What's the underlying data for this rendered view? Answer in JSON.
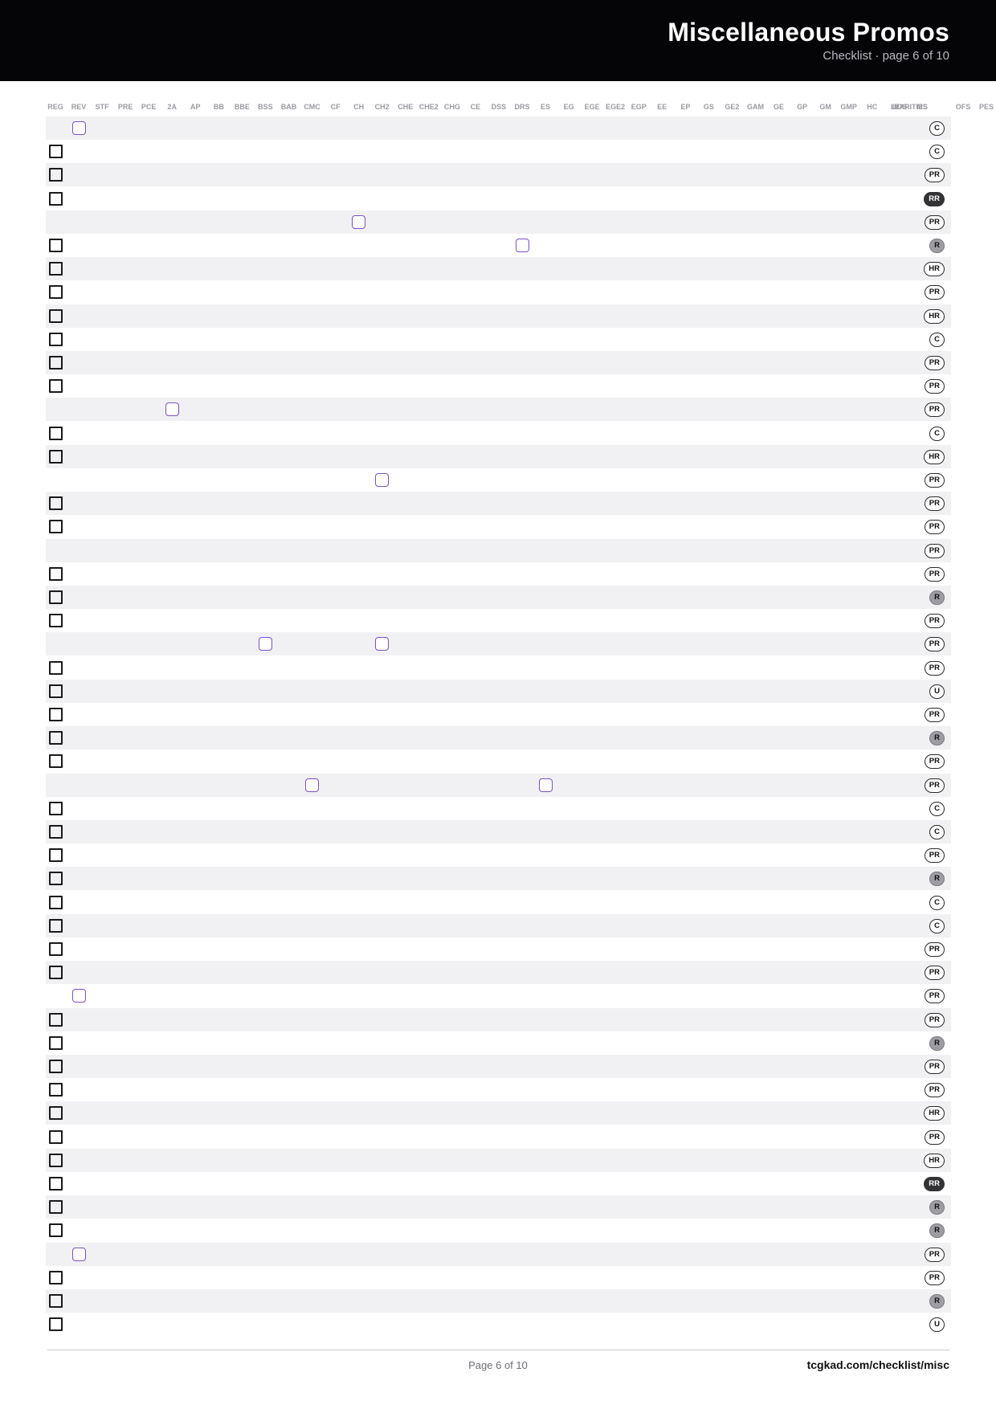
{
  "header": {
    "title": "Miscellaneous Promos",
    "subtitle": "Checklist · page 6 of 10"
  },
  "columns": [
    "REG",
    "REV",
    "STF",
    "PRE",
    "PCE",
    "2A",
    "AP",
    "BB",
    "BBE",
    "BSS",
    "BAB",
    "CMC",
    "CF",
    "CH",
    "CH2",
    "CHE",
    "CHE2",
    "CHG",
    "CE",
    "DSS",
    "DRS",
    "ES",
    "EG",
    "EGE",
    "EGE2",
    "EGP",
    "EE",
    "EP",
    "GS",
    "GE2",
    "GAM",
    "GE",
    "GP",
    "GM",
    "GMP",
    "HC",
    "LE",
    "LOS",
    "RARITIES",
    "MS",
    "OFS",
    "PES"
  ],
  "rows": [
    {
      "reg": false,
      "variants": [
        "REV"
      ],
      "rarity": "C",
      "tone": "normal"
    },
    {
      "reg": true,
      "variants": [],
      "rarity": "C",
      "tone": "normal"
    },
    {
      "reg": true,
      "variants": [],
      "rarity": "PR",
      "tone": "normal"
    },
    {
      "reg": true,
      "variants": [],
      "rarity": "RR",
      "tone": "dark"
    },
    {
      "reg": false,
      "variants": [
        "CH"
      ],
      "rarity": "PR",
      "tone": "normal"
    },
    {
      "reg": true,
      "variants": [
        "DRS"
      ],
      "rarity": "R",
      "tone": "light"
    },
    {
      "reg": true,
      "variants": [],
      "rarity": "HR",
      "tone": "normal"
    },
    {
      "reg": true,
      "variants": [],
      "rarity": "PR",
      "tone": "normal"
    },
    {
      "reg": true,
      "variants": [],
      "rarity": "HR",
      "tone": "normal"
    },
    {
      "reg": true,
      "variants": [],
      "rarity": "C",
      "tone": "normal"
    },
    {
      "reg": true,
      "variants": [],
      "rarity": "PR",
      "tone": "normal"
    },
    {
      "reg": true,
      "variants": [],
      "rarity": "PR",
      "tone": "normal"
    },
    {
      "reg": false,
      "variants": [
        "2A"
      ],
      "rarity": "PR",
      "tone": "normal"
    },
    {
      "reg": true,
      "variants": [],
      "rarity": "C",
      "tone": "normal"
    },
    {
      "reg": true,
      "variants": [],
      "rarity": "HR",
      "tone": "normal"
    },
    {
      "reg": false,
      "variants": [
        "CH2"
      ],
      "rarity": "PR",
      "tone": "normal"
    },
    {
      "reg": true,
      "variants": [],
      "rarity": "PR",
      "tone": "normal"
    },
    {
      "reg": true,
      "variants": [],
      "rarity": "PR",
      "tone": "normal"
    },
    {
      "reg": false,
      "variants": [],
      "rarity": "PR",
      "tone": "normal"
    },
    {
      "reg": true,
      "variants": [],
      "rarity": "PR",
      "tone": "normal"
    },
    {
      "reg": true,
      "variants": [],
      "rarity": "R",
      "tone": "light"
    },
    {
      "reg": true,
      "variants": [],
      "rarity": "PR",
      "tone": "normal"
    },
    {
      "reg": false,
      "variants": [
        "BSS",
        "CH2"
      ],
      "rarity": "PR",
      "tone": "normal"
    },
    {
      "reg": true,
      "variants": [],
      "rarity": "PR",
      "tone": "normal"
    },
    {
      "reg": true,
      "variants": [],
      "rarity": "U",
      "tone": "normal"
    },
    {
      "reg": true,
      "variants": [],
      "rarity": "PR",
      "tone": "normal"
    },
    {
      "reg": true,
      "variants": [],
      "rarity": "R",
      "tone": "light"
    },
    {
      "reg": true,
      "variants": [],
      "rarity": "PR",
      "tone": "normal"
    },
    {
      "reg": false,
      "variants": [
        "CMC",
        "ES"
      ],
      "rarity": "PR",
      "tone": "normal"
    },
    {
      "reg": true,
      "variants": [],
      "rarity": "C",
      "tone": "normal"
    },
    {
      "reg": true,
      "variants": [],
      "rarity": "C",
      "tone": "normal"
    },
    {
      "reg": true,
      "variants": [],
      "rarity": "PR",
      "tone": "normal"
    },
    {
      "reg": true,
      "variants": [],
      "rarity": "R",
      "tone": "light"
    },
    {
      "reg": true,
      "variants": [],
      "rarity": "C",
      "tone": "normal"
    },
    {
      "reg": true,
      "variants": [],
      "rarity": "C",
      "tone": "normal"
    },
    {
      "reg": true,
      "variants": [],
      "rarity": "PR",
      "tone": "normal"
    },
    {
      "reg": true,
      "variants": [],
      "rarity": "PR",
      "tone": "normal"
    },
    {
      "reg": false,
      "variants": [
        "REV"
      ],
      "rarity": "PR",
      "tone": "normal"
    },
    {
      "reg": true,
      "variants": [],
      "rarity": "PR",
      "tone": "normal"
    },
    {
      "reg": true,
      "variants": [],
      "rarity": "R",
      "tone": "light"
    },
    {
      "reg": true,
      "variants": [],
      "rarity": "PR",
      "tone": "normal"
    },
    {
      "reg": true,
      "variants": [],
      "rarity": "PR",
      "tone": "normal"
    },
    {
      "reg": true,
      "variants": [],
      "rarity": "HR",
      "tone": "normal"
    },
    {
      "reg": true,
      "variants": [],
      "rarity": "PR",
      "tone": "normal"
    },
    {
      "reg": true,
      "variants": [],
      "rarity": "HR",
      "tone": "normal"
    },
    {
      "reg": true,
      "variants": [],
      "rarity": "RR",
      "tone": "dark"
    },
    {
      "reg": true,
      "variants": [],
      "rarity": "R",
      "tone": "light"
    },
    {
      "reg": true,
      "variants": [],
      "rarity": "R",
      "tone": "light"
    },
    {
      "reg": false,
      "variants": [
        "REV"
      ],
      "rarity": "PR",
      "tone": "normal"
    },
    {
      "reg": true,
      "variants": [],
      "rarity": "PR",
      "tone": "normal"
    },
    {
      "reg": true,
      "variants": [],
      "rarity": "R",
      "tone": "light"
    },
    {
      "reg": true,
      "variants": [],
      "rarity": "U",
      "tone": "normal"
    }
  ],
  "footer": {
    "page": "Page 6 of 10",
    "url": "tcgkad.com/checklist/misc"
  },
  "colors": {
    "header_bg": "#050508",
    "variant_box": "#7b4fc9",
    "row_shade": "#f1f1f4"
  }
}
